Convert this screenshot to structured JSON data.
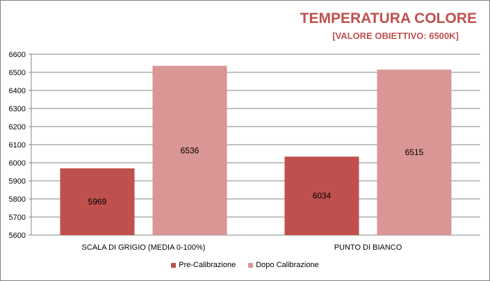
{
  "title": "TEMPERATURA COLORE",
  "subtitle": "[VALORE OBIETTIVO: 6500K]",
  "chart_data": {
    "type": "bar",
    "title": "TEMPERATURA COLORE",
    "subtitle": "[VALORE OBIETTIVO: 6500K]",
    "categories": [
      "SCALA DI GRIGIO  (MEDIA  0-100%)",
      "PUNTO DI BIANCO"
    ],
    "series": [
      {
        "name": "Pre-Calibrazione",
        "values": [
          5969,
          6034
        ],
        "color": "#c0504d"
      },
      {
        "name": "Dopo Calibrazione",
        "values": [
          6536,
          6515
        ],
        "color": "#d99694"
      }
    ],
    "ylim": [
      5600,
      6600
    ],
    "yticks": [
      5600,
      5700,
      5800,
      5900,
      6000,
      6100,
      6200,
      6300,
      6400,
      6500,
      6600
    ],
    "grid": true,
    "legend_position": "bottom",
    "data_labels": true,
    "xlabel": "",
    "ylabel": ""
  }
}
